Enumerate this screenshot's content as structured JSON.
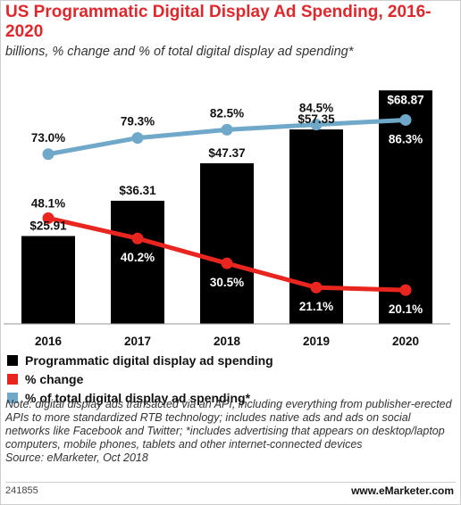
{
  "header": {
    "title": "US Programmatic Digital Display Ad Spending, 2016-2020",
    "subtitle": "billions, % change and % of total digital display ad spending*"
  },
  "chart_data": {
    "type": "bar",
    "categories": [
      "2016",
      "2017",
      "2018",
      "2019",
      "2020"
    ],
    "series": [
      {
        "name": "Programmatic digital display ad spending",
        "kind": "bar",
        "color": "#000000",
        "values": [
          25.91,
          36.31,
          47.37,
          57.35,
          68.87
        ],
        "labels": [
          "$25.91",
          "$36.31",
          "$47.37",
          "$57.35",
          "$68.87"
        ]
      },
      {
        "name": "% change",
        "kind": "line",
        "color": "#e8251f",
        "values": [
          48.1,
          40.2,
          30.5,
          21.1,
          20.1
        ],
        "labels": [
          "48.1%",
          "40.2%",
          "30.5%",
          "21.1%",
          "20.1%"
        ]
      },
      {
        "name": "% of total digital display ad spending*",
        "kind": "line",
        "color": "#6fa8c8",
        "values": [
          73.0,
          79.3,
          82.5,
          84.5,
          86.3
        ],
        "labels": [
          "73.0%",
          "79.3%",
          "82.5%",
          "84.5%",
          "86.3%"
        ]
      }
    ],
    "bar_ylim": [
      0,
      70
    ],
    "line_ylim": [
      0,
      100
    ],
    "legend_position": "bottom-left"
  },
  "note": "Note: digital display ads transacted via an API, including everything from publisher-erected APIs to more standardized RTB technology; includes native ads and ads on social networks like Facebook and Twitter; *includes advertising that appears on desktop/laptop computers, mobile phones, tablets and other internet-connected devices",
  "source": "Source: eMarketer, Oct 2018",
  "footer": {
    "id": "241855",
    "brand": "www.eMarketer.com"
  }
}
